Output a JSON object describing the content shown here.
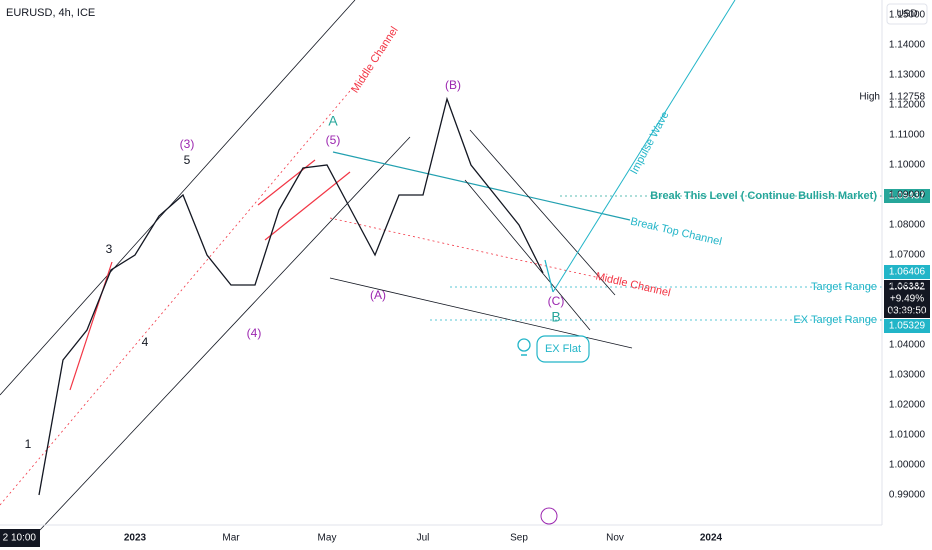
{
  "chart_data": {
    "type": "line",
    "title": "EURUSD, 4h, ICE",
    "currency": "USD",
    "categories": [
      null,
      null,
      null,
      null,
      "2023",
      null,
      null,
      null,
      "Mar",
      null,
      null,
      null,
      "May",
      null,
      null,
      null,
      "Jul",
      null,
      null,
      null,
      "Sep",
      null,
      null,
      null,
      "Nov",
      null,
      null,
      null,
      "2024"
    ],
    "series": [
      {
        "name": "EURUSD",
        "color": "#131722",
        "values": [
          0.99,
          1.035,
          1.045,
          1.065,
          1.07,
          1.083,
          1.09,
          1.07,
          1.06,
          1.06,
          1.085,
          1.099,
          1.1,
          1.085,
          1.07,
          1.09,
          1.09,
          1.122,
          1.1,
          1.09,
          1.08,
          1.064,
          null,
          null,
          null,
          null,
          null,
          null,
          null
        ]
      }
    ],
    "ylim": [
      0.98,
      1.155
    ],
    "yticks": [
      {
        "value": 0.99,
        "label": "0.99000"
      },
      {
        "value": 1.0,
        "label": "1.00000"
      },
      {
        "value": 1.01,
        "label": "1.01000"
      },
      {
        "value": 1.02,
        "label": "1.02000"
      },
      {
        "value": 1.03,
        "label": "1.03000"
      },
      {
        "value": 1.04,
        "label": "1.04000"
      },
      {
        "value": 1.05,
        "label": "1.05000"
      },
      {
        "value": 1.06,
        "label": "1.06000"
      },
      {
        "value": 1.07,
        "label": "1.07000"
      },
      {
        "value": 1.08,
        "label": "1.08000"
      },
      {
        "value": 1.09,
        "label": "1.09000"
      },
      {
        "value": 1.1,
        "label": "1.10000"
      },
      {
        "value": 1.11,
        "label": "1.11000"
      },
      {
        "value": 1.12,
        "label": "1.12000"
      },
      {
        "value": 1.13,
        "label": "1.13000"
      },
      {
        "value": 1.14,
        "label": "1.14000"
      },
      {
        "value": 1.15,
        "label": "1.15000"
      }
    ],
    "grid": false,
    "price_labels": {
      "high_label": "High",
      "high": 1.12758,
      "break_level": 1.09437,
      "last_close": 1.06406,
      "current": 1.06382,
      "change": "+9.49%",
      "countdown": "03:39:50",
      "ex_target": 1.05329
    },
    "crosshair_time": "2 10:00",
    "annotations": [
      "Middle Channel",
      "A",
      "(5)",
      "(3)",
      "5",
      "3",
      "4",
      "1",
      "(4)",
      "(B)",
      "(A)",
      "(C)",
      "B",
      "Impulse Wave",
      "Break This Level ( Continue Bullish Market)",
      "Break Top Channel",
      "Middle Channel",
      "Target Range",
      "EX Target Range",
      "EX Flat"
    ]
  }
}
